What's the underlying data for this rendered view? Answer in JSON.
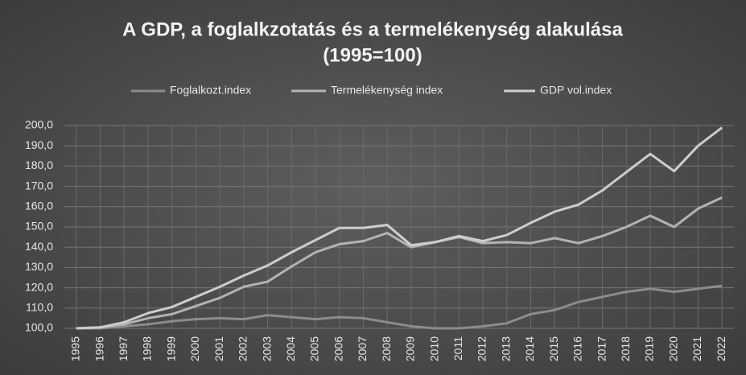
{
  "chart_data": {
    "type": "line",
    "title": [
      "A GDP, a foglalkzotatás és a termelékenység alakulása",
      "(1995=100)"
    ],
    "categories": [
      "1995",
      "1996",
      "1997",
      "1998",
      "1999",
      "2000",
      "2001",
      "2002",
      "2003",
      "2004",
      "2005",
      "2006",
      "2007",
      "2008",
      "2009",
      "2010",
      "2011",
      "2012",
      "2013",
      "2014",
      "2015",
      "2016",
      "2017",
      "2018",
      "2019",
      "2020",
      "2021",
      "2022"
    ],
    "series": [
      {
        "name": "Foglalkozt.index",
        "color": "#8c8c8c",
        "values": [
          100,
          100,
          101,
          102,
          103.5,
          104.5,
          105,
          104.5,
          106.5,
          105.5,
          104.5,
          105.5,
          105,
          103,
          101,
          100,
          100,
          101,
          102.5,
          107,
          109,
          113,
          115.5,
          118,
          119.5,
          118,
          119.5,
          121
        ]
      },
      {
        "name": "Termelékenység index",
        "color": "#b3b3b3",
        "values": [
          100,
          100.5,
          102,
          105,
          107,
          111,
          115,
          120.5,
          123,
          130.5,
          137.5,
          141.5,
          143,
          147,
          140,
          142.5,
          145,
          142,
          142.5,
          142,
          144.5,
          142,
          145.5,
          150,
          155.5,
          150,
          159,
          164.5
        ]
      },
      {
        "name": "GDP vol.index",
        "color": "#cdcdcd",
        "values": [
          100,
          100.5,
          103,
          107.5,
          110.5,
          115.5,
          120.5,
          126,
          131,
          137.5,
          143.5,
          149.5,
          149.5,
          151,
          141,
          142.5,
          145.5,
          143,
          146,
          152,
          157.5,
          161,
          168,
          177,
          186,
          177.5,
          190,
          199
        ]
      }
    ],
    "ylim": [
      100,
      200
    ],
    "yticks": [
      {
        "value": 100,
        "label": "100,0"
      },
      {
        "value": 110,
        "label": "110,0"
      },
      {
        "value": 120,
        "label": "120,0"
      },
      {
        "value": 130,
        "label": "130,0"
      },
      {
        "value": 140,
        "label": "140,0"
      },
      {
        "value": 150,
        "label": "150,0"
      },
      {
        "value": 160,
        "label": "160,0"
      },
      {
        "value": 170,
        "label": "170,0"
      },
      {
        "value": 180,
        "label": "180,0"
      },
      {
        "value": 190,
        "label": "190,0"
      },
      {
        "value": 200,
        "label": "200,0"
      }
    ],
    "grid": true,
    "legend": "top"
  }
}
